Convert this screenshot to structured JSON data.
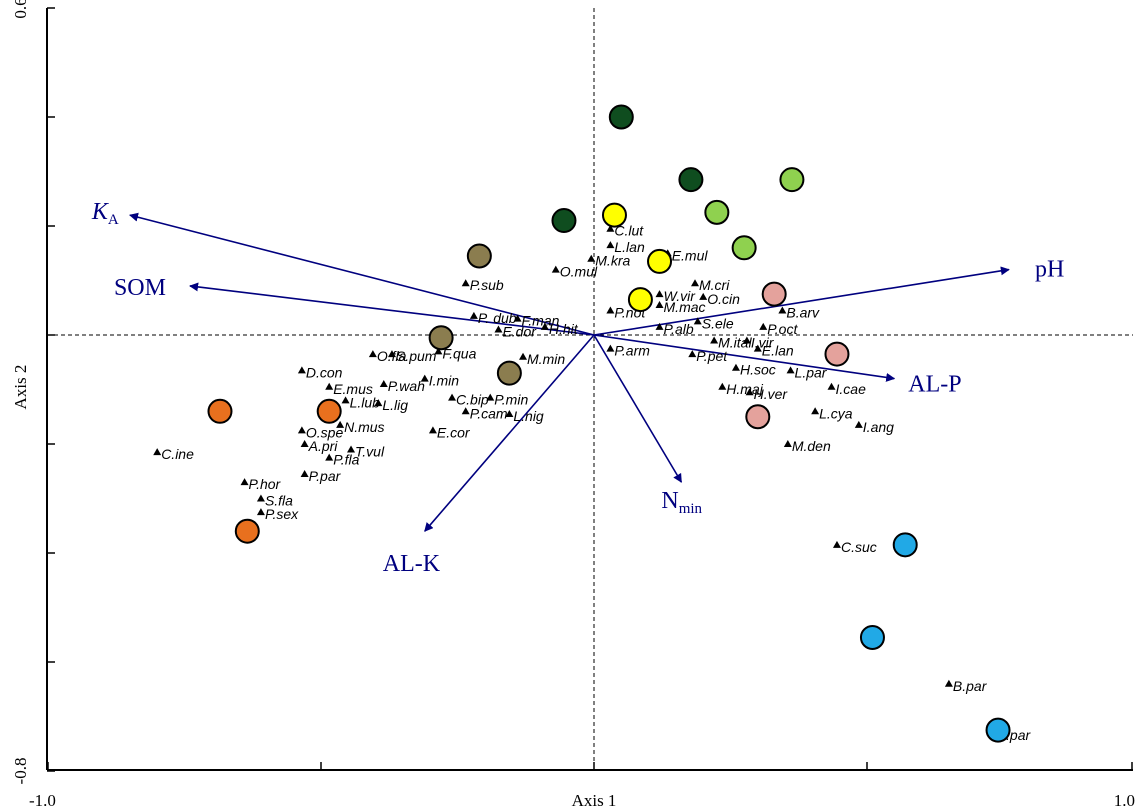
{
  "chart_data": {
    "type": "scatter",
    "xlabel": "Axis 1",
    "ylabel": "Axis 2",
    "xlim": [
      -1.0,
      1.0
    ],
    "ylim": [
      -0.8,
      0.6
    ],
    "x_ticks": [
      -1.0,
      -0.5,
      0,
      0.5,
      1.0
    ],
    "x_tick_labels": [
      "-1.0",
      "",
      "",
      "",
      "1.0"
    ],
    "y_ticks": [
      -0.8,
      -0.6,
      -0.4,
      -0.2,
      0,
      0.2,
      0.4,
      0.6
    ],
    "y_tick_labels": [
      "-0.8",
      "",
      "",
      "",
      "",
      "",
      "",
      "0.6"
    ],
    "origin_lines": "dashed",
    "colors": {
      "arrow": "#00007f",
      "dark_green": "#0f4d1f",
      "light_green": "#8fd14f",
      "yellow": "#ffff00",
      "olive": "#8b7d4f",
      "orange": "#e8701e",
      "pink": "#e4a29c",
      "cyan": "#21a9e6"
    },
    "environmental_vectors": [
      {
        "label": "K",
        "subscript": "A",
        "x": -0.85,
        "y": 0.22
      },
      {
        "label": "SOM",
        "x": -0.74,
        "y": 0.09
      },
      {
        "label": "pH",
        "x": 0.76,
        "y": 0.12
      },
      {
        "label": "AL-P",
        "x": 0.55,
        "y": -0.08
      },
      {
        "label": "N",
        "subscript": "min",
        "x": 0.16,
        "y": -0.27
      },
      {
        "label": "AL-K",
        "x": -0.31,
        "y": -0.36
      }
    ],
    "sample_sites": [
      {
        "group": "dark_green",
        "x": 0.1,
        "y": 0.4
      },
      {
        "group": "dark_green",
        "x": 0.355,
        "y": 0.285
      },
      {
        "group": "dark_green",
        "x": -0.11,
        "y": 0.21
      },
      {
        "group": "light_green",
        "x": 0.725,
        "y": 0.285
      },
      {
        "group": "light_green",
        "x": 0.45,
        "y": 0.225
      },
      {
        "group": "light_green",
        "x": 0.55,
        "y": 0.16
      },
      {
        "group": "yellow",
        "x": 0.075,
        "y": 0.22
      },
      {
        "group": "yellow",
        "x": 0.24,
        "y": 0.135
      },
      {
        "group": "yellow",
        "x": 0.17,
        "y": 0.065
      },
      {
        "group": "olive",
        "x": -0.42,
        "y": 0.145
      },
      {
        "group": "olive",
        "x": -0.56,
        "y": -0.005
      },
      {
        "group": "olive",
        "x": -0.31,
        "y": -0.07
      },
      {
        "group": "orange",
        "x": -1.37,
        "y": -0.14
      },
      {
        "group": "orange",
        "x": -0.97,
        "y": -0.14
      },
      {
        "group": "orange",
        "x": -1.27,
        "y": -0.36
      },
      {
        "group": "pink",
        "x": 0.66,
        "y": 0.075
      },
      {
        "group": "pink",
        "x": 0.89,
        "y": -0.035
      },
      {
        "group": "pink",
        "x": 0.6,
        "y": -0.15
      },
      {
        "group": "cyan",
        "x": 1.14,
        "y": -0.385
      },
      {
        "group": "cyan",
        "x": 1.02,
        "y": -0.555
      },
      {
        "group": "cyan",
        "x": 1.48,
        "y": -0.725
      }
    ],
    "species": [
      {
        "label": "C.lut",
        "x": 0.06,
        "y": 0.195
      },
      {
        "label": "L.lan",
        "x": 0.06,
        "y": 0.165
      },
      {
        "label": "M.kra",
        "x": -0.01,
        "y": 0.14
      },
      {
        "label": "E.mul",
        "x": 0.27,
        "y": 0.15
      },
      {
        "label": "O.mul",
        "x": -0.14,
        "y": 0.12
      },
      {
        "label": "P.sub",
        "x": -0.47,
        "y": 0.095
      },
      {
        "label": "M.cri",
        "x": 0.37,
        "y": 0.095
      },
      {
        "label": "W.vir",
        "x": 0.24,
        "y": 0.075
      },
      {
        "label": "O.cin",
        "x": 0.4,
        "y": 0.07
      },
      {
        "label": "M.mac",
        "x": 0.24,
        "y": 0.055
      },
      {
        "label": "P.not",
        "x": 0.06,
        "y": 0.045
      },
      {
        "label": "B.arv",
        "x": 0.69,
        "y": 0.045
      },
      {
        "label": "F.man",
        "x": -0.28,
        "y": 0.03
      },
      {
        "label": "H.hit",
        "x": -0.18,
        "y": 0.015
      },
      {
        "label": "P. dub",
        "x": -0.44,
        "y": 0.035
      },
      {
        "label": "E.dor",
        "x": -0.35,
        "y": 0.01
      },
      {
        "label": "S.ele",
        "x": 0.38,
        "y": 0.025
      },
      {
        "label": "P.alb",
        "x": 0.24,
        "y": 0.015
      },
      {
        "label": "P.oct",
        "x": 0.62,
        "y": 0.015
      },
      {
        "label": "M.ital",
        "x": 0.44,
        "y": -0.01
      },
      {
        "label": "I.vir",
        "x": 0.56,
        "y": -0.01
      },
      {
        "label": "E.lan",
        "x": 0.6,
        "y": -0.025
      },
      {
        "label": "P.arm",
        "x": 0.06,
        "y": -0.025
      },
      {
        "label": "O.fla",
        "x": -0.81,
        "y": -0.035
      },
      {
        "label": "S.pum",
        "x": -0.74,
        "y": -0.035
      },
      {
        "label": "F.qua",
        "x": -0.57,
        "y": -0.03
      },
      {
        "label": "M.min",
        "x": -0.26,
        "y": -0.04
      },
      {
        "label": "P.pet",
        "x": 0.36,
        "y": -0.035
      },
      {
        "label": "D.con",
        "x": -1.07,
        "y": -0.065
      },
      {
        "label": "H.soc",
        "x": 0.52,
        "y": -0.06
      },
      {
        "label": "L.par",
        "x": 0.72,
        "y": -0.065
      },
      {
        "label": "I.min",
        "x": -0.62,
        "y": -0.08
      },
      {
        "label": "E.mus",
        "x": -0.97,
        "y": -0.095
      },
      {
        "label": "P.wah",
        "x": -0.77,
        "y": -0.09
      },
      {
        "label": "H.maj",
        "x": 0.47,
        "y": -0.095
      },
      {
        "label": "H.ver",
        "x": 0.57,
        "y": -0.105
      },
      {
        "label": "I.cae",
        "x": 0.87,
        "y": -0.095
      },
      {
        "label": "C.bip",
        "x": -0.52,
        "y": -0.115
      },
      {
        "label": "P.min",
        "x": -0.38,
        "y": -0.115
      },
      {
        "label": "L.lub",
        "x": -0.91,
        "y": -0.12
      },
      {
        "label": "L.lig",
        "x": -0.79,
        "y": -0.125
      },
      {
        "label": "L.cya",
        "x": 0.81,
        "y": -0.14
      },
      {
        "label": "P.cam",
        "x": -0.47,
        "y": -0.14
      },
      {
        "label": "L.nig",
        "x": -0.31,
        "y": -0.145
      },
      {
        "label": "O.spe",
        "x": -1.07,
        "y": -0.175
      },
      {
        "label": "N.mus",
        "x": -0.93,
        "y": -0.165
      },
      {
        "label": "I.ang",
        "x": 0.97,
        "y": -0.165
      },
      {
        "label": "E.cor",
        "x": -0.59,
        "y": -0.175
      },
      {
        "label": "A.pri",
        "x": -1.06,
        "y": -0.2
      },
      {
        "label": "M.den",
        "x": 0.71,
        "y": -0.2
      },
      {
        "label": "C.ine",
        "x": -1.6,
        "y": -0.215
      },
      {
        "label": "T.vul",
        "x": -0.89,
        "y": -0.21
      },
      {
        "label": "P.fla",
        "x": -0.97,
        "y": -0.225
      },
      {
        "label": "P.par",
        "x": -1.06,
        "y": -0.255
      },
      {
        "label": "P.hor",
        "x": -1.28,
        "y": -0.27
      },
      {
        "label": "S.fla",
        "x": -1.22,
        "y": -0.3
      },
      {
        "label": "P.sex",
        "x": -1.22,
        "y": -0.325
      },
      {
        "label": "C.suc",
        "x": 0.89,
        "y": -0.385
      },
      {
        "label": "B.par",
        "x": 1.3,
        "y": -0.64
      },
      {
        "label": "F.par",
        "x": 1.47,
        "y": -0.73
      }
    ]
  }
}
